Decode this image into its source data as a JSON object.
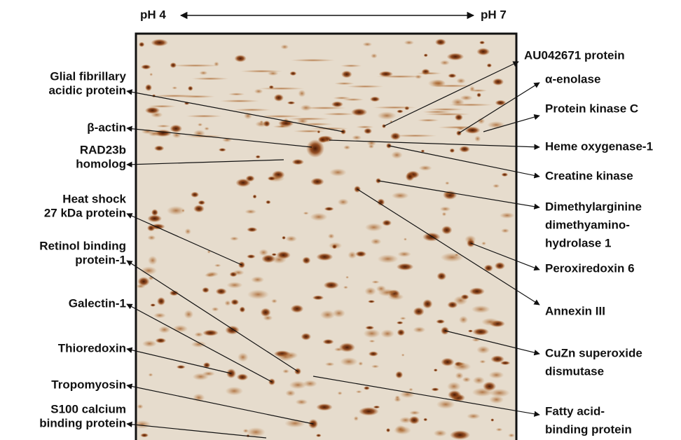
{
  "header": {
    "left": "pH 4",
    "right": "pH 7"
  },
  "left_labels": [
    {
      "lines": [
        "Glial fibrillary",
        "acidic protein"
      ]
    },
    {
      "lines": [
        "β-actin"
      ]
    },
    {
      "lines": [
        "RAD23b",
        "homolog"
      ]
    },
    {
      "lines": [
        "Heat shock",
        "27 kDa protein"
      ]
    },
    {
      "lines": [
        "Retinol binding",
        "protein-1"
      ]
    },
    {
      "lines": [
        "Galectin-1"
      ]
    },
    {
      "lines": [
        "Thioredoxin"
      ]
    },
    {
      "lines": [
        "Tropomyosin"
      ]
    },
    {
      "lines": [
        "S100 calcium",
        "binding protein"
      ]
    }
  ],
  "right_labels": [
    {
      "lines": [
        "AU042671 protein"
      ]
    },
    {
      "lines": [
        "α-enolase"
      ]
    },
    {
      "lines": [
        "Protein kinase C"
      ]
    },
    {
      "lines": [
        "Heme oxygenase-1"
      ]
    },
    {
      "lines": [
        "Creatine kinase"
      ]
    },
    {
      "lines": [
        "Dimethylarginine",
        "dimethyamino-",
        "hydrolase 1"
      ]
    },
    {
      "lines": [
        "Peroxiredoxin 6"
      ]
    },
    {
      "lines": [
        "Annexin III"
      ]
    },
    {
      "lines": [
        "CuZn superoxide",
        "dismutase"
      ]
    },
    {
      "lines": [
        "Fatty acid-",
        "binding protein"
      ]
    }
  ]
}
